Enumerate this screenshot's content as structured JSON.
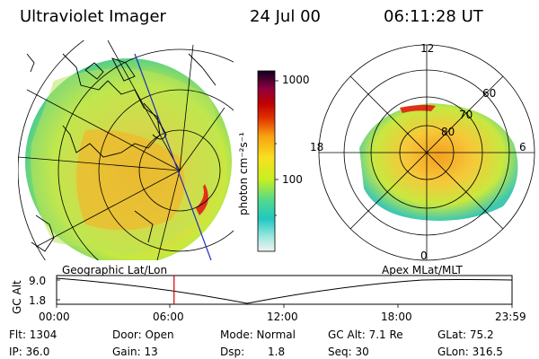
{
  "header": {
    "instrument": "Ultraviolet Imager",
    "date": "24 Jul 00",
    "time": "06:11:28 UT"
  },
  "colorbar": {
    "unit_label": "photon cm⁻²s⁻¹",
    "tick_1000": "1000",
    "tick_100": "100"
  },
  "polar": {
    "lat_labels": [
      "60",
      "70",
      "80"
    ],
    "mlt_labels": [
      "12",
      "18",
      "6",
      "0"
    ]
  },
  "altitude_panel": {
    "left_label": "Geographic Lat/Lon",
    "right_label": "Apex MLat/MLT",
    "axis_title": "GC Alt",
    "y_ticks": [
      "9.0",
      "1.8"
    ],
    "x_ticks": [
      "00:00",
      "06:00",
      "12:00",
      "18:00",
      "23:59"
    ],
    "marker_time_hours": 6.19,
    "marker_color": "#d00000"
  },
  "status": {
    "flt": "Flt: 1304",
    "ip": "IP: 36.0",
    "door": "Door: Open",
    "gain": "Gain: 13",
    "mode": "Mode: Normal",
    "dsp_label": "Dsp:",
    "dsp_value": "1.8",
    "gcalt": "GC Alt: 7.1 Re",
    "seq": "Seq: 30",
    "glat": "GLat: 75.2",
    "glon": "GLon: 316.5"
  }
}
